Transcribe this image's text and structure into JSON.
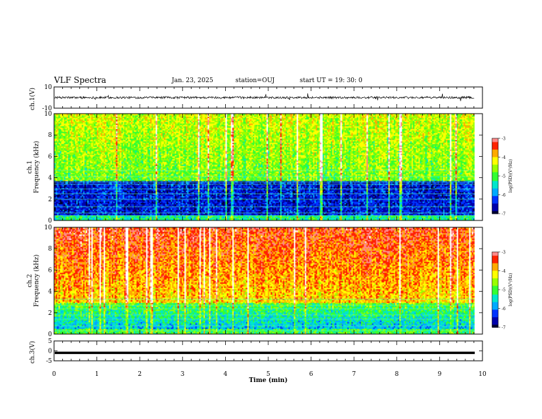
{
  "header": {
    "title": "VLF Spectra",
    "date": "Jan. 23, 2025",
    "station": "station=OUJ",
    "start": "start  UT =  19: 30: 0"
  },
  "chart_data": [
    {
      "type": "line",
      "name": "ch1-waveform",
      "ylabel": "ch.1(V)",
      "ylim": [
        -10,
        10
      ],
      "y_ticks": [
        "10",
        "-10"
      ],
      "baseline": 0,
      "noise_amplitude": 1.0
    },
    {
      "type": "heatmap",
      "name": "ch1-spectrogram",
      "ylabel": "ch.1\nFrequency (kHz)",
      "ylim": [
        0,
        10
      ],
      "y_ticks": [
        "0",
        "2",
        "4",
        "6",
        "8",
        "10"
      ],
      "colorbar": {
        "label": "log(PSD)(V²/Hz)",
        "range": [
          -7,
          -3
        ],
        "ticks": [
          "-3",
          "-4",
          "-5",
          "-6",
          "-7"
        ]
      },
      "dominant_upper": "green",
      "dominant_lower": "blue"
    },
    {
      "type": "heatmap",
      "name": "ch2-spectrogram",
      "ylabel": "ch.2\nFrequency (kHz)",
      "ylim": [
        0,
        10
      ],
      "y_ticks": [
        "0",
        "2",
        "4",
        "6",
        "8",
        "10"
      ],
      "colorbar": {
        "label": "log(PSD)(V²/Hz)",
        "range": [
          -7,
          -3
        ],
        "ticks": [
          "-3",
          "-4",
          "-5",
          "-6",
          "-7"
        ]
      },
      "dominant_upper": "red-yellow",
      "dominant_lower": "green-blue"
    },
    {
      "type": "line",
      "name": "ch3-waveform",
      "ylabel": "ch.3(V)",
      "ylim": [
        -5,
        5
      ],
      "y_ticks": [
        "5",
        "0",
        "-5"
      ],
      "baseline": -1
    }
  ],
  "x_axis": {
    "label": "Time (min)",
    "xlim": [
      0,
      10
    ],
    "data_end": 9.82,
    "ticks": [
      "0",
      "1",
      "2",
      "3",
      "4",
      "5",
      "6",
      "7",
      "8",
      "9",
      "10"
    ]
  },
  "colors": {
    "colormap": [
      "#000033",
      "#0000aa",
      "#0033ff",
      "#00aaff",
      "#00e6cc",
      "#33ff33",
      "#99ff00",
      "#ffff00",
      "#ffaa00",
      "#ff2200",
      "#ff8888",
      "#ffffff"
    ]
  }
}
